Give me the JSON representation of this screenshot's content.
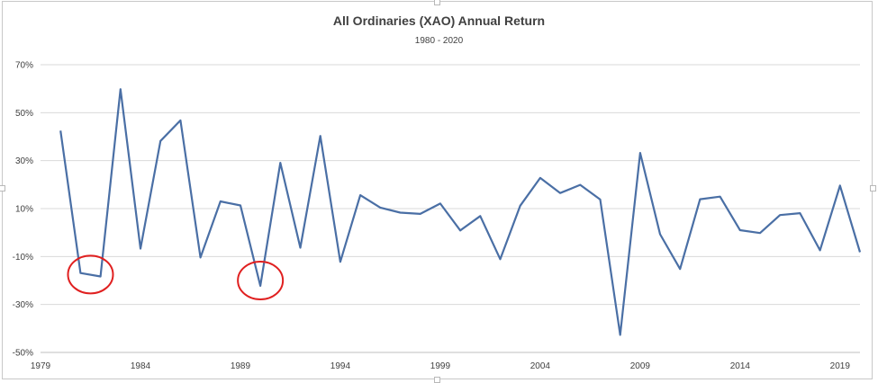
{
  "chart_data": {
    "type": "line",
    "title": "All Ordinaries (XAO) Annual Return",
    "subtitle": "1980 - 2020",
    "xlabel": "",
    "ylabel": "",
    "ylim": [
      -50,
      70
    ],
    "xlim": [
      1979,
      2020
    ],
    "y_ticks": [
      70,
      50,
      30,
      10,
      -10,
      -30,
      -50
    ],
    "y_tick_labels": [
      "70%",
      "50%",
      "30%",
      "10%",
      "-10%",
      "-30%",
      "-50%"
    ],
    "x_ticks": [
      1979,
      1984,
      1989,
      1994,
      1999,
      2004,
      2009,
      2014,
      2019
    ],
    "x_tick_labels": [
      "1979",
      "1984",
      "1989",
      "1994",
      "1999",
      "2004",
      "2009",
      "2014",
      "2019"
    ],
    "grid": true,
    "line_color": "#4a6fa5",
    "annotation_color": "#e02020",
    "series": [
      {
        "name": "",
        "x": [
          1980,
          1981,
          1982,
          1983,
          1984,
          1985,
          1986,
          1987,
          1988,
          1989,
          1990,
          1991,
          1992,
          1993,
          1994,
          1995,
          1996,
          1997,
          1998,
          1999,
          2000,
          2001,
          2002,
          2003,
          2004,
          2005,
          2006,
          2007,
          2008,
          2009,
          2010,
          2011,
          2012,
          2013,
          2014,
          2015,
          2016,
          2017,
          2018,
          2019,
          2020
        ],
        "values": [
          42.5,
          -16.9,
          -18.3,
          59.8,
          -6.7,
          38.2,
          46.8,
          -10.4,
          13.0,
          11.3,
          -22.2,
          29.1,
          -6.3,
          40.3,
          -12.2,
          15.6,
          10.4,
          8.3,
          7.8,
          12.1,
          0.9,
          6.9,
          -11.1,
          11.2,
          22.8,
          16.5,
          19.9,
          13.8,
          -42.7,
          33.2,
          -0.7,
          -15.2,
          13.9,
          15.0,
          1.0,
          -0.2,
          7.3,
          8.1,
          -7.4,
          19.6,
          -8.2
        ]
      }
    ],
    "annotations": [
      {
        "type": "circle",
        "x": 1981.5,
        "y": -17.5
      },
      {
        "type": "circle",
        "x": 1990,
        "y": -20
      }
    ]
  }
}
